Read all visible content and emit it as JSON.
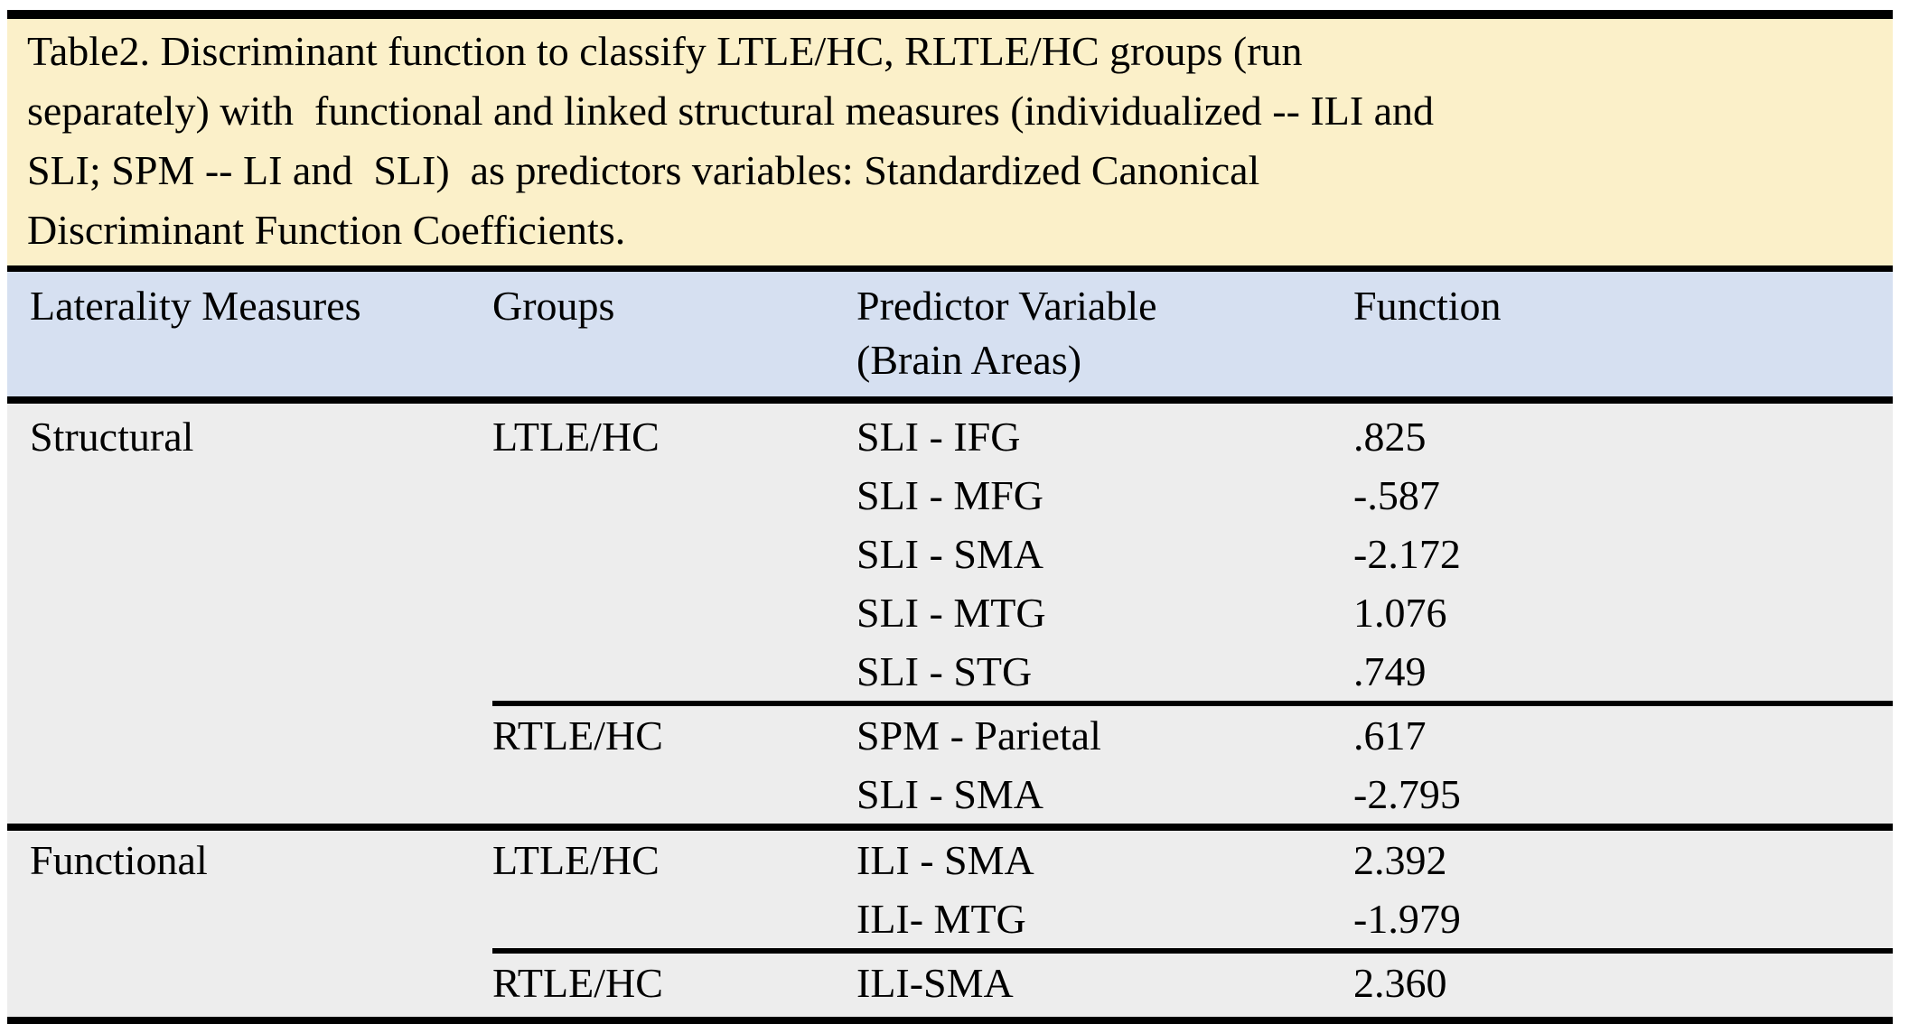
{
  "caption": {
    "lines": [
      "Table2. Discriminant function to classify LTLE/HC, RLTLE/HC groups (run",
      "separately) with  functional and linked structural measures (individualized -- ILI and",
      "SLI; SPM -- LI and  SLI)  as predictors variables: Standardized Canonical",
      "Discriminant Function Coefficients."
    ]
  },
  "header": {
    "columns": [
      {
        "line1": "Laterality Measures",
        "line2": ""
      },
      {
        "line1": "Groups",
        "line2": ""
      },
      {
        "line1": "Predictor Variable",
        "line2": "(Brain Areas)"
      },
      {
        "line1": "Function",
        "line2": ""
      }
    ]
  },
  "table": {
    "rows": [
      {
        "measure": "Structural",
        "group": "LTLE/HC",
        "predictor": "SLI - IFG",
        "function": ".825",
        "separator": "none"
      },
      {
        "measure": "",
        "group": "",
        "predictor": "SLI - MFG",
        "function": "-.587",
        "separator": "none"
      },
      {
        "measure": "",
        "group": "",
        "predictor": "SLI - SMA",
        "function": "-2.172",
        "separator": "none"
      },
      {
        "measure": "",
        "group": "",
        "predictor": "SLI - MTG",
        "function": "1.076",
        "separator": "none"
      },
      {
        "measure": "",
        "group": "",
        "predictor": "SLI - STG",
        "function": ".749",
        "separator": "none"
      },
      {
        "measure": "",
        "group": "RTLE/HC",
        "predictor": "SPM - Parietal",
        "function": ".617",
        "separator": "partial"
      },
      {
        "measure": "",
        "group": "",
        "predictor": "SLI - SMA",
        "function": "-2.795",
        "separator": "none"
      },
      {
        "measure": "Functional",
        "group": "LTLE/HC",
        "predictor": "ILI - SMA",
        "function": "2.392",
        "separator": "full"
      },
      {
        "measure": "",
        "group": "",
        "predictor": "ILI- MTG",
        "function": "-1.979",
        "separator": "none"
      },
      {
        "measure": "",
        "group": "RTLE/HC",
        "predictor": "ILI-SMA",
        "function": "2.360",
        "separator": "partial"
      }
    ]
  },
  "colors": {
    "caption_bg": "#FBF0C9",
    "header_bg": "#D6E0F1",
    "body_bg": "#EDEDED",
    "rule": "#000000"
  }
}
